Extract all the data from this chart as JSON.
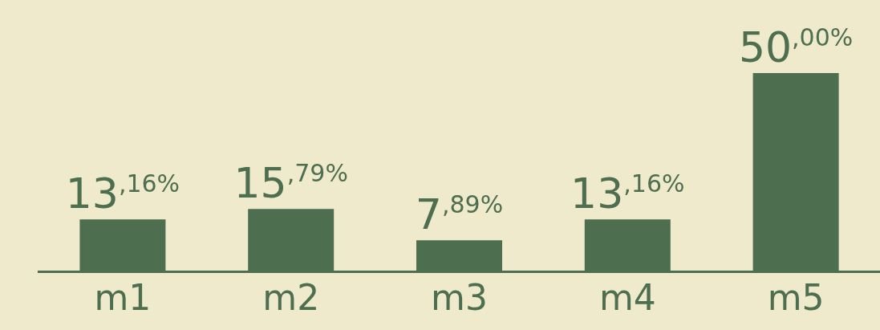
{
  "chart_data": {
    "type": "bar",
    "categories": [
      "m1",
      "m2",
      "m3",
      "m4",
      "m5"
    ],
    "values": [
      13.16,
      15.79,
      7.89,
      13.16,
      50
    ],
    "color": "#4e6e50",
    "value_labels": [
      "13,16%",
      "15,79%",
      "7,89%",
      "13,16%",
      "50,00%"
    ],
    "tick_labels": "x",
    "grid": false,
    "legend": false
  }
}
